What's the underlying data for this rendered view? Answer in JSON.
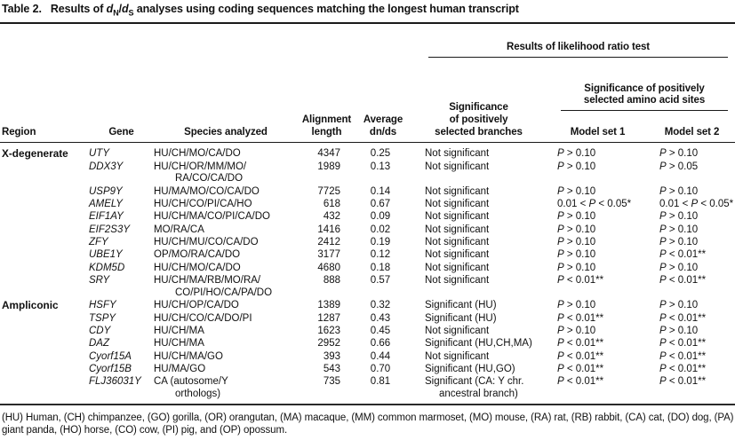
{
  "title": {
    "label": "Table 2.",
    "pre": "Results of ",
    "d1": "d",
    "sub1": "N",
    "slash": "/",
    "d2": "d",
    "sub2": "S",
    "post": " analyses using coding sequences matching the longest human transcript"
  },
  "header": {
    "region": "Region",
    "gene": "Gene",
    "species": "Species analyzed",
    "alignment": "Alignment\nlength",
    "avg": "Average\ndn/ds",
    "lrt": "Results of likelihood ratio test",
    "branches": "Significance\nof positively\nselected branches",
    "sites": "Significance of positively\nselected amino acid sites",
    "model1": "Model set 1",
    "model2": "Model set 2"
  },
  "rows": [
    {
      "region": "X-degenerate",
      "gene": "UTY",
      "species": "HU/CH/MO/CA/DO",
      "length": "4347",
      "dnds": "0.25",
      "branches": "Not significant",
      "m1": "P > 0.10",
      "m2": "P > 0.10"
    },
    {
      "region": "",
      "gene": "DDX3Y",
      "species": "HU/CH/OR/MM/MO/\nRA/CO/CA/DO",
      "length": "1989",
      "dnds": "0.13",
      "branches": "Not significant",
      "m1": "P > 0.10",
      "m2": "P > 0.05"
    },
    {
      "region": "",
      "gene": "USP9Y",
      "species": "HU/MA/MO/CO/CA/DO",
      "length": "7725",
      "dnds": "0.14",
      "branches": "Not significant",
      "m1": "P > 0.10",
      "m2": "P > 0.10"
    },
    {
      "region": "",
      "gene": "AMELY",
      "species": "HU/CH/CO/PI/CA/HO",
      "length": "618",
      "dnds": "0.67",
      "branches": "Not significant",
      "m1": "0.01 < P < 0.05*",
      "m2": "0.01 < P < 0.05*"
    },
    {
      "region": "",
      "gene": "EIF1AY",
      "species": "HU/CH/MA/CO/PI/CA/DO",
      "length": "432",
      "dnds": "0.09",
      "branches": "Not significant",
      "m1": "P > 0.10",
      "m2": "P > 0.10"
    },
    {
      "region": "",
      "gene": "EIF2S3Y",
      "species": "MO/RA/CA",
      "length": "1416",
      "dnds": "0.02",
      "branches": "Not significant",
      "m1": "P > 0.10",
      "m2": "P > 0.10"
    },
    {
      "region": "",
      "gene": "ZFY",
      "species": "HU/CH/MU/CO/CA/DO",
      "length": "2412",
      "dnds": "0.19",
      "branches": "Not significant",
      "m1": "P > 0.10",
      "m2": "P > 0.10"
    },
    {
      "region": "",
      "gene": "UBE1Y",
      "species": "OP/MO/RA/CA/DO",
      "length": "3177",
      "dnds": "0.12",
      "branches": "Not significant",
      "m1": "P > 0.10",
      "m2": "P < 0.01**"
    },
    {
      "region": "",
      "gene": "KDM5D",
      "species": "HU/CH/MO/CA/DO",
      "length": "4680",
      "dnds": "0.18",
      "branches": "Not significant",
      "m1": "P > 0.10",
      "m2": "P > 0.10"
    },
    {
      "region": "",
      "gene": "SRY",
      "species": "HU/CH/MA/RB/MO/RA/\nCO/PI/HO/CA/PA/DO",
      "length": "888",
      "dnds": "0.57",
      "branches": "Not significant",
      "m1": "P < 0.01**",
      "m2": "P < 0.01**"
    },
    {
      "region": "Ampliconic",
      "gene": "HSFY",
      "species": "HU/CH/OP/CA/DO",
      "length": "1389",
      "dnds": "0.32",
      "branches": "Significant (HU)",
      "m1": "P > 0.10",
      "m2": "P > 0.10"
    },
    {
      "region": "",
      "gene": "TSPY",
      "species": "HU/CH/CO/CA/DO/PI",
      "length": "1287",
      "dnds": "0.43",
      "branches": "Significant (HU)",
      "m1": "P < 0.01**",
      "m2": "P < 0.01**"
    },
    {
      "region": "",
      "gene": "CDY",
      "species": "HU/CH/MA",
      "length": "1623",
      "dnds": "0.45",
      "branches": "Not significant",
      "m1": "P > 0.10",
      "m2": "P > 0.10"
    },
    {
      "region": "",
      "gene": "DAZ",
      "species": "HU/CH/MA",
      "length": "2952",
      "dnds": "0.66",
      "branches": "Significant (HU,CH,MA)",
      "m1": "P < 0.01**",
      "m2": "P < 0.01**"
    },
    {
      "region": "",
      "gene": "Cyorf15A",
      "species": "HU/CH/MA/GO",
      "length": "393",
      "dnds": "0.44",
      "branches": "Not significant",
      "m1": "P < 0.01**",
      "m2": "P < 0.01**"
    },
    {
      "region": "",
      "gene": "Cyorf15B",
      "species": "HU/MA/GO",
      "length": "543",
      "dnds": "0.70",
      "branches": "Significant (HU,GO)",
      "m1": "P < 0.01**",
      "m2": "P < 0.01**"
    },
    {
      "region": "",
      "gene": "FLJ36031Y",
      "species": "CA (autosome/Y\northologs)",
      "length": "735",
      "dnds": "0.81",
      "branches": "Significant (CA: Y chr.\nancestral branch)",
      "m1": "P < 0.01**",
      "m2": "P < 0.01**"
    }
  ],
  "footnote": "(HU) Human, (CH) chimpanzee, (GO) gorilla, (OR) orangutan, (MA) macaque, (MM) common marmoset, (MO) mouse, (RA) rat, (RB) rabbit, (CA) cat, (DO) dog, (PA) giant panda, (HO) horse, (CO) cow, (PI) pig, and (OP) opossum."
}
